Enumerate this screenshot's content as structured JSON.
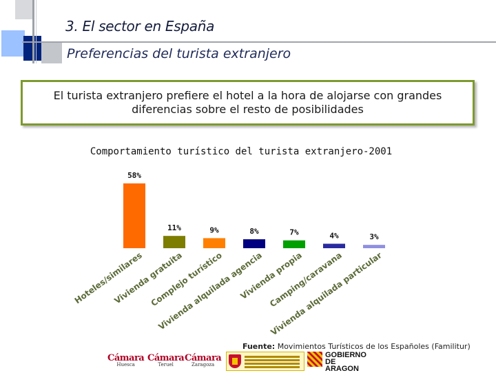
{
  "header": {
    "section_title": "3.  El sector en España",
    "subtitle": "Preferencias del turista extranjero"
  },
  "callout": {
    "text": "El turista extranjero prefiere el hotel a la hora de alojarse con grandes diferencias sobre el resto de posibilidades"
  },
  "chart_data": {
    "type": "bar",
    "title": "Comportamiento turístico del turista extranjero-2001",
    "categories": [
      "Hoteles/similares",
      "Vivienda gratuita",
      "Complejo turístico",
      "Vivienda alquilada agencia",
      "Vivienda propia",
      "Camping/caravana",
      "Vivienda alquilada particular"
    ],
    "values": [
      58,
      11,
      9,
      8,
      7,
      4,
      3
    ],
    "value_labels": [
      "58%",
      "11%",
      "9%",
      "8%",
      "7%",
      "4%",
      "3%"
    ],
    "colors": [
      "#ff6a00",
      "#7d7d00",
      "#ff8000",
      "#000080",
      "#00a000",
      "#2a2aa0",
      "#9090e0"
    ],
    "xlabel": "",
    "ylabel": "",
    "ylim": [
      0,
      58
    ],
    "grid": false,
    "legend": "none"
  },
  "footer": {
    "source_label": "Fuente:",
    "source_text": " Movimientos Turísticos de los Españoles (Familitur)",
    "camaras": [
      {
        "name": "Cámara",
        "city": "Huesca"
      },
      {
        "name": "Cámara",
        "city": "Teruel"
      },
      {
        "name": "Cámara",
        "city": "Zaragoza"
      }
    ],
    "aragon_logo": "GOBIERNO DE ARAGON"
  }
}
